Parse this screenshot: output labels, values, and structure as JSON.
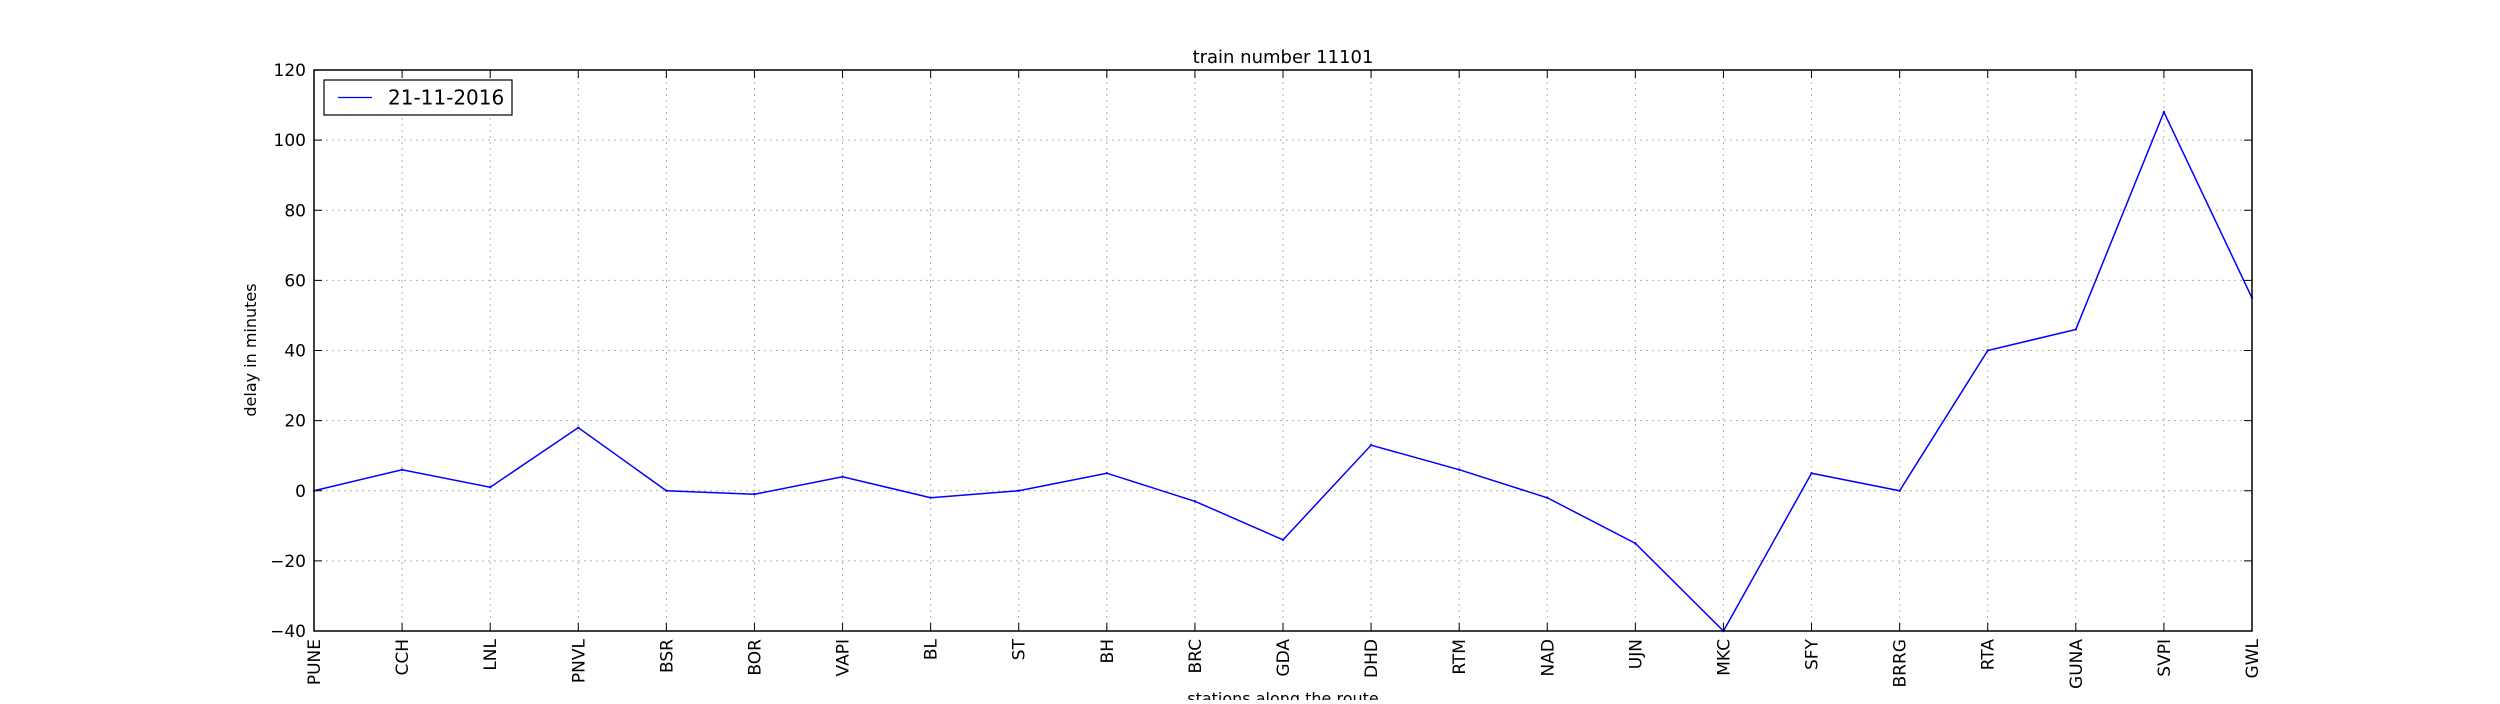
{
  "chart_data": {
    "type": "line",
    "title": "train number 11101",
    "xlabel": "stations along the route",
    "ylabel": "delay in minutes",
    "ylim": [
      -40,
      120
    ],
    "yticks": [
      -40,
      -20,
      0,
      20,
      40,
      60,
      80,
      100,
      120
    ],
    "ytick_labels": [
      "−40",
      "−20",
      "0",
      "20",
      "40",
      "60",
      "80",
      "100",
      "120"
    ],
    "grid": true,
    "legend_position": "top-left",
    "categories": [
      "PUNE",
      "CCH",
      "LNL",
      "PNVL",
      "BSR",
      "BOR",
      "VAPI",
      "BL",
      "ST",
      "BH",
      "BRC",
      "GDA",
      "DHD",
      "RTM",
      "NAD",
      "UJN",
      "MKC",
      "SFY",
      "BRRG",
      "RTA",
      "GUNA",
      "SVPI",
      "GWL"
    ],
    "series": [
      {
        "name": "21-11-2016",
        "color": "#0000ff",
        "values": [
          0,
          6,
          1,
          18,
          0,
          -1,
          4,
          -2,
          0,
          5,
          -3,
          -14,
          13,
          6,
          -2,
          -15,
          -40,
          5,
          0,
          40,
          46,
          108,
          55
        ]
      }
    ]
  }
}
